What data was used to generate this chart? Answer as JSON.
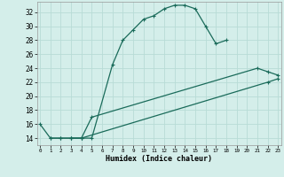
{
  "xlabel": "Humidex (Indice chaleur)",
  "bg_color": "#d4eeea",
  "grid_color": "#b8dcd6",
  "line_color": "#1a6b5a",
  "x_ticks": [
    0,
    1,
    2,
    3,
    4,
    5,
    6,
    7,
    8,
    9,
    10,
    11,
    12,
    13,
    14,
    15,
    16,
    17,
    18,
    19,
    20,
    21,
    22,
    23
  ],
  "y_ticks": [
    14,
    16,
    18,
    20,
    22,
    24,
    26,
    28,
    30,
    32
  ],
  "xlim": [
    -0.3,
    23.3
  ],
  "ylim": [
    13.0,
    33.5
  ],
  "line1_x": [
    0,
    1,
    2,
    3,
    4,
    5,
    7,
    8,
    9,
    10,
    11,
    12,
    13,
    14,
    15,
    16,
    17,
    18
  ],
  "line1_y": [
    16,
    14,
    14,
    14,
    14,
    14,
    24.5,
    28,
    29.5,
    31,
    31.5,
    32.5,
    33,
    33,
    32.5,
    30,
    27.5,
    28
  ],
  "line2_x": [
    1,
    2,
    3,
    4,
    5,
    21,
    22,
    23
  ],
  "line2_y": [
    14,
    14,
    14,
    14,
    17,
    24,
    23.5,
    23
  ],
  "line3_x": [
    3,
    4,
    22,
    23
  ],
  "line3_y": [
    14,
    14,
    22,
    22.5
  ]
}
